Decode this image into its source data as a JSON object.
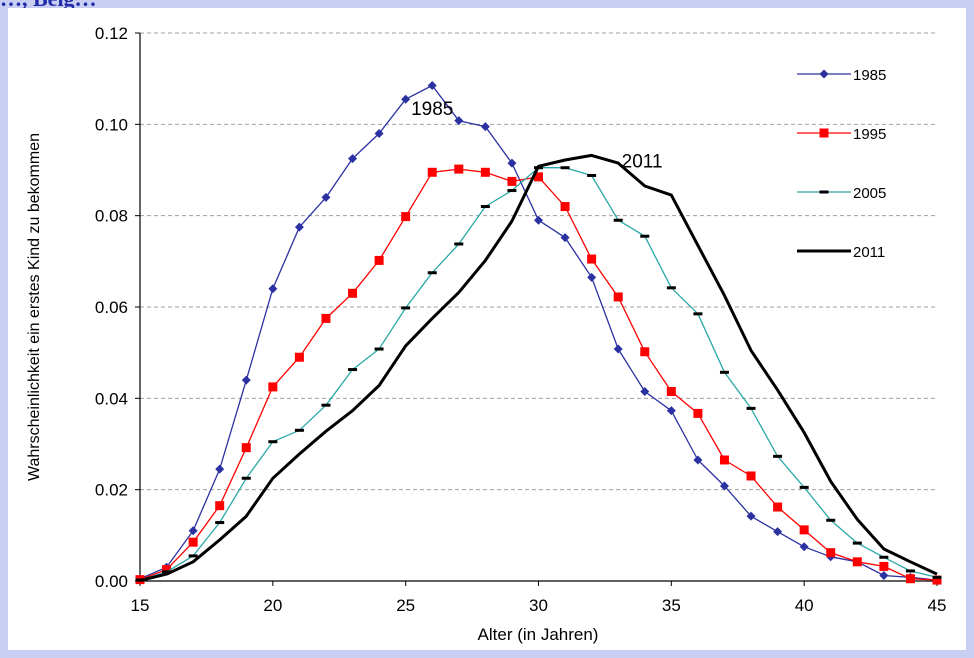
{
  "header_fragment": "…, Beig…",
  "chart_data": {
    "type": "line",
    "title": "",
    "xlabel": "Alter (in Jahren)",
    "ylabel": "Wahrscheinlichkeit ein erstes Kind zu bekommen",
    "xlim": [
      15,
      45
    ],
    "ylim": [
      0,
      0.12
    ],
    "xticks": [
      15,
      20,
      25,
      30,
      35,
      40,
      45
    ],
    "yticks": [
      "0.00",
      "0.02",
      "0.04",
      "0.06",
      "0.08",
      "0.10",
      "0.12"
    ],
    "grid": "horizontal dashed",
    "legend_position": "right",
    "x": [
      15,
      16,
      17,
      18,
      19,
      20,
      21,
      22,
      23,
      24,
      25,
      26,
      27,
      28,
      29,
      30,
      31,
      32,
      33,
      34,
      35,
      36,
      37,
      38,
      39,
      40,
      41,
      42,
      43,
      44,
      45
    ],
    "series": [
      {
        "name": "1985",
        "color": "#2b31a0",
        "marker": "diamond",
        "values": [
          0.0005,
          0.003,
          0.011,
          0.0245,
          0.044,
          0.064,
          0.0775,
          0.084,
          0.0925,
          0.098,
          0.1055,
          0.1085,
          0.1008,
          0.0995,
          0.0915,
          0.079,
          0.0752,
          0.0665,
          0.0508,
          0.0415,
          0.0373,
          0.0265,
          0.0208,
          0.0142,
          0.0108,
          0.0075,
          0.0053,
          0.0042,
          0.0012,
          0.0008,
          0.0002
        ]
      },
      {
        "name": "1995",
        "color": "#ff0000",
        "marker": "square",
        "values": [
          0.0003,
          0.0025,
          0.0085,
          0.0165,
          0.0292,
          0.0425,
          0.049,
          0.0575,
          0.063,
          0.0702,
          0.0798,
          0.0895,
          0.0902,
          0.0895,
          0.0875,
          0.0885,
          0.082,
          0.0705,
          0.0622,
          0.0502,
          0.0415,
          0.0367,
          0.0265,
          0.023,
          0.0162,
          0.0112,
          0.0062,
          0.0042,
          0.0032,
          0.0005,
          0.0002
        ]
      },
      {
        "name": "2005",
        "color": "#2aa8a8",
        "marker": "dash",
        "values": [
          0.0002,
          0.002,
          0.0055,
          0.0128,
          0.0225,
          0.0305,
          0.033,
          0.0385,
          0.0463,
          0.0508,
          0.0598,
          0.0675,
          0.0738,
          0.082,
          0.0855,
          0.0905,
          0.0905,
          0.0888,
          0.079,
          0.0755,
          0.0642,
          0.0585,
          0.0457,
          0.0378,
          0.0273,
          0.0205,
          0.0133,
          0.0083,
          0.0052,
          0.0022,
          0.0008
        ]
      },
      {
        "name": "2011",
        "color": "#000000",
        "marker": "none",
        "values": [
          0.0001,
          0.0015,
          0.0042,
          0.009,
          0.0142,
          0.0225,
          0.0278,
          0.0328,
          0.0373,
          0.0428,
          0.0515,
          0.0575,
          0.0632,
          0.0702,
          0.0788,
          0.0908,
          0.0922,
          0.0932,
          0.0915,
          0.0865,
          0.0845,
          0.0735,
          0.0625,
          0.0505,
          0.0418,
          0.0325,
          0.0218,
          0.0135,
          0.007,
          0.0042,
          0.0015
        ]
      }
    ],
    "annotations": [
      {
        "text": "1985",
        "x": 26,
        "y": 0.102
      },
      {
        "text": "2011",
        "x": 33.9,
        "y": 0.0905
      }
    ]
  }
}
